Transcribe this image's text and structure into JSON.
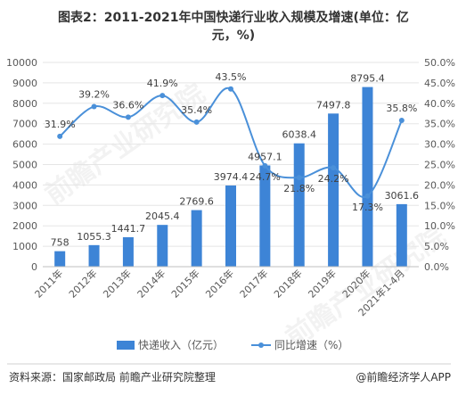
{
  "header": {
    "title_line1": "图表2：2011-2021年中国快递行业收入规模及增速(单位：亿",
    "title_line2": "元，%)"
  },
  "footer": {
    "source": "资料来源：国家邮政局 前瞻产业研究院整理",
    "brand": "@前瞻经济学人APP"
  },
  "watermark": {
    "text1": "前瞻产业研究院",
    "text2": "前瞻产业研究院"
  },
  "colors": {
    "bar": "#3d84d6",
    "line": "#4a90d9",
    "text": "#595959",
    "grid": "#e5e5e5"
  },
  "chart_data": {
    "type": "bar",
    "title": "图表2：2011-2021年中国快递行业收入规模及增速(单位：亿元，%)",
    "categories": [
      "2011年",
      "2012年",
      "2013年",
      "2014年",
      "2015年",
      "2016年",
      "2017年",
      "2018年",
      "2019年",
      "2020年",
      "2021年1-4月"
    ],
    "series": [
      {
        "name": "快递收入（亿元）",
        "type": "bar",
        "axis": "left",
        "values": [
          758,
          1055.3,
          1441.7,
          2045.4,
          2769.6,
          3974.4,
          4957.1,
          6038.4,
          7497.8,
          8795.4,
          3061.6
        ],
        "labels": [
          "758",
          "1055.3",
          "1441.7",
          "2045.4",
          "2769.6",
          "3974.4",
          "4957.1",
          "6038.4",
          "7497.8",
          "8795.4",
          "3061.6"
        ]
      },
      {
        "name": "同比增速（%）",
        "type": "line",
        "axis": "right",
        "values": [
          31.9,
          39.2,
          36.6,
          41.9,
          35.4,
          43.5,
          24.7,
          21.8,
          24.2,
          17.3,
          35.8
        ],
        "labels": [
          "31.9%",
          "39.2%",
          "36.6%",
          "41.9%",
          "35.4%",
          "43.5%",
          "24.7%",
          "21.8%",
          "24.2%",
          "17.3%",
          "35.8%"
        ]
      }
    ],
    "ylim": [
      0,
      10000
    ],
    "y2lim": [
      0,
      50
    ],
    "yticks": [
      "0",
      "1000",
      "2000",
      "3000",
      "4000",
      "5000",
      "6000",
      "7000",
      "8000",
      "9000",
      "10000"
    ],
    "y2ticks": [
      "0.0%",
      "5.0%",
      "10.0%",
      "15.0%",
      "20.0%",
      "25.0%",
      "30.0%",
      "35.0%",
      "40.0%",
      "45.0%",
      "50.0%"
    ],
    "grid": true,
    "legend": "bottom"
  }
}
